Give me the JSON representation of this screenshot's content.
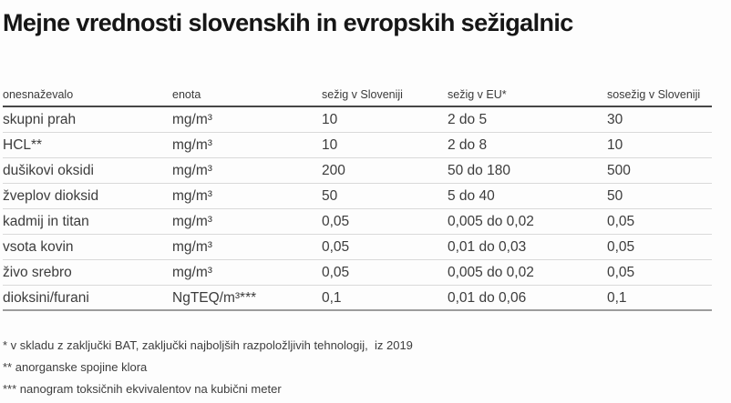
{
  "title": "Mejne vrednosti slovenskih in evropskih sežigalnic",
  "chart_data": {
    "type": "table",
    "title": "Mejne vrednosti slovenskih in evropskih sežigalnic",
    "columns": [
      "onesnaževalo",
      "enota",
      "sežig v Sloveniji",
      "sežig v EU*",
      "sosežig v Sloveniji"
    ],
    "rows": [
      [
        "skupni prah",
        "mg/m³",
        "10",
        "2 do 5",
        "30"
      ],
      [
        "HCL**",
        "mg/m³",
        "10",
        "2 do 8",
        "10"
      ],
      [
        "dušikovi oksidi",
        "mg/m³",
        "200",
        "50 do 180",
        "500"
      ],
      [
        "žveplov dioksid",
        "mg/m³",
        "50",
        "5 do 40",
        "50"
      ],
      [
        "kadmij in titan",
        "mg/m³",
        "0,05",
        "0,005 do 0,02",
        "0,05"
      ],
      [
        "vsota kovin",
        "mg/m³",
        "0,05",
        "0,01 do 0,03",
        "0,05"
      ],
      [
        "živo srebro",
        "mg/m³",
        "0,05",
        "0,005 do 0,02",
        "0,05"
      ],
      [
        "dioksini/furani",
        "NgTEQ/m³***",
        "0,1",
        "0,01 do 0,06",
        "0,1"
      ]
    ],
    "layout": {
      "grid": "horizontal-row-separators",
      "header_rule_color": "#474747",
      "row_rule_color": "#d9d9d9",
      "bottom_rule_color": "#9c9c9c"
    }
  },
  "footnotes": [
    "* v skladu z zaključki BAT, zaključki najboljših razpoložljivih tehnologij,  iz 2019",
    "** anorganske spojine klora",
    "*** nanogram toksičnih ekvivalentov na kubični meter"
  ],
  "colors": {
    "background": "#fdfdfd",
    "title_text": "#161616",
    "body_text": "#3c3c3c"
  }
}
